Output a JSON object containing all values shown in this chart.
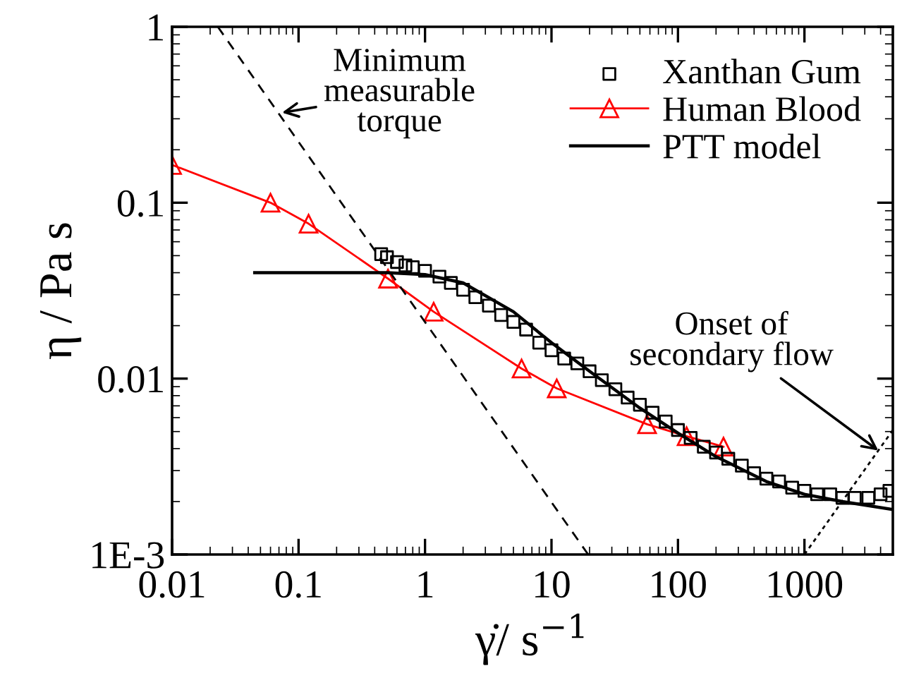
{
  "chart_data": {
    "type": "line",
    "xlabel": "γ̇/ s$^{−1}$",
    "ylabel": "η / Pa s",
    "log": "xy",
    "legend": "top right",
    "grid": false,
    "xlim": [
      0.01,
      5000
    ],
    "xticks": [
      0.01,
      0.1,
      1,
      10,
      100,
      1000
    ],
    "ylim": [
      0.001,
      1
    ],
    "yticks": [
      {
        "value": 0.001,
        "label": "1E-3"
      },
      0.01,
      0.1,
      1
    ],
    "series": [
      {
        "name": "Xanthan Gum",
        "type": "scatter",
        "marker": "square",
        "color": "#000000",
        "x": [
          0.45,
          0.5,
          0.6,
          0.7,
          0.8,
          1.0,
          1.3,
          1.6,
          2,
          2.5,
          3.2,
          4,
          5,
          6.3,
          8,
          10,
          12.6,
          16,
          20,
          25,
          32,
          40,
          50,
          63,
          80,
          100,
          126,
          160,
          200,
          250,
          320,
          400,
          500,
          630,
          800,
          1000,
          1260,
          1600,
          2000,
          2500,
          3200,
          4000,
          4700
        ],
        "values": [
          0.051,
          0.049,
          0.046,
          0.044,
          0.043,
          0.041,
          0.038,
          0.035,
          0.032,
          0.029,
          0.026,
          0.023,
          0.021,
          0.019,
          0.016,
          0.0145,
          0.013,
          0.0122,
          0.011,
          0.0098,
          0.0087,
          0.0078,
          0.0071,
          0.0064,
          0.0057,
          0.0051,
          0.0046,
          0.0041,
          0.0038,
          0.0035,
          0.0032,
          0.0029,
          0.0027,
          0.0026,
          0.0024,
          0.0023,
          0.0022,
          0.0022,
          0.0021,
          0.0021,
          0.0021,
          0.0022,
          0.0023
        ]
      },
      {
        "name": "Human Blood",
        "marker": "triangle",
        "line_style": "solid",
        "color": "#ff0000",
        "x": [
          0.01,
          0.06,
          0.12,
          0.51,
          1.17,
          5.8,
          11,
          57,
          117,
          229
        ],
        "values": [
          0.164,
          0.1,
          0.076,
          0.037,
          0.024,
          0.0114,
          0.0088,
          0.0055,
          0.0047,
          0.0041
        ]
      },
      {
        "name": "PTT model",
        "marker": "none",
        "line_style": "solid",
        "color": "#000000",
        "x": [
          0.045,
          0.2,
          0.5,
          1,
          2,
          5,
          10,
          20,
          50,
          100,
          200,
          500,
          1000,
          2000,
          5000
        ],
        "values": [
          0.04,
          0.04,
          0.04,
          0.039,
          0.035,
          0.024,
          0.016,
          0.011,
          0.0068,
          0.0049,
          0.0036,
          0.0026,
          0.0022,
          0.002,
          0.0018
        ]
      },
      {
        "marker": "none",
        "line_style": "dashed",
        "color": "#000000",
        "x": [
          0.023,
          19.5
        ],
        "values": [
          1,
          0.001
        ]
      },
      {
        "marker": "none",
        "line_style": "dotted",
        "color": "#000000",
        "x": [
          1000,
          5000
        ],
        "values": [
          0.001,
          0.0051
        ]
      }
    ],
    "annotations": [
      {
        "text": "Minimum\nmeasurable\ntorque",
        "x": 0.074,
        "y": 0.325
      },
      {
        "text": "Onset of\nsecondary flow",
        "x": 3840,
        "y": 0.0039
      }
    ]
  }
}
